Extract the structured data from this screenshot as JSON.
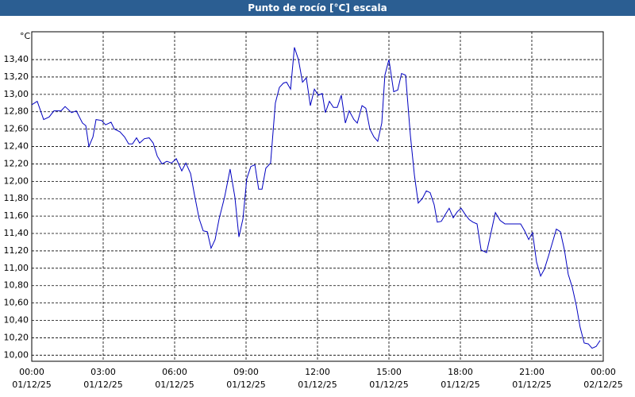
{
  "chart_data": {
    "type": "line",
    "title": "Punto de rocío [°C] escala",
    "y_label": "°C",
    "series": [
      {
        "name": "Punto de rocío",
        "color": "#0000c0",
        "x": [
          0,
          0.23,
          0.5,
          0.73,
          0.93,
          1.23,
          1.4,
          1.67,
          1.87,
          2.13,
          2.27,
          2.4,
          2.57,
          2.7,
          2.93,
          3.1,
          3.33,
          3.47,
          3.7,
          3.9,
          4.07,
          4.23,
          4.4,
          4.53,
          4.73,
          4.93,
          5.1,
          5.27,
          5.47,
          5.67,
          5.87,
          6.07,
          6.3,
          6.47,
          6.67,
          6.83,
          7.03,
          7.2,
          7.37,
          7.53,
          7.7,
          7.87,
          8.1,
          8.33,
          8.53,
          8.7,
          8.87,
          9.03,
          9.2,
          9.37,
          9.53,
          9.67,
          9.83,
          10.03,
          10.23,
          10.4,
          10.57,
          10.7,
          10.87,
          11.03,
          11.2,
          11.37,
          11.53,
          11.7,
          11.87,
          12.03,
          12.2,
          12.33,
          12.5,
          12.67,
          12.83,
          13,
          13.17,
          13.33,
          13.53,
          13.67,
          13.87,
          14.03,
          14.2,
          14.37,
          14.53,
          14.7,
          14.83,
          15,
          15.2,
          15.37,
          15.53,
          15.7,
          15.9,
          16.07,
          16.23,
          16.4,
          16.57,
          16.73,
          16.9,
          17.03,
          17.2,
          17.37,
          17.53,
          17.7,
          17.87,
          18.03,
          18.2,
          18.37,
          18.53,
          18.7,
          18.87,
          19.1,
          19.27,
          19.47,
          19.67,
          19.87,
          20.53,
          20.7,
          20.87,
          21.03,
          21.2,
          21.37,
          21.53,
          21.7,
          21.87,
          22.03,
          22.2,
          22.37,
          22.53,
          22.7,
          22.87,
          23.03,
          23.2,
          23.37,
          23.53,
          23.7,
          23.87
        ],
        "values": [
          12.88,
          12.92,
          12.71,
          12.74,
          12.81,
          12.81,
          12.86,
          12.79,
          12.81,
          12.67,
          12.64,
          12.4,
          12.51,
          12.71,
          12.7,
          12.65,
          12.68,
          12.6,
          12.57,
          12.51,
          12.43,
          12.43,
          12.5,
          12.44,
          12.49,
          12.5,
          12.44,
          12.29,
          12.2,
          12.23,
          12.21,
          12.26,
          12.12,
          12.21,
          12.09,
          11.85,
          11.57,
          11.43,
          11.42,
          11.23,
          11.33,
          11.57,
          11.82,
          12.14,
          11.82,
          11.36,
          11.57,
          12.03,
          12.17,
          12.19,
          11.91,
          11.91,
          12.15,
          12.21,
          12.9,
          13.08,
          13.13,
          13.14,
          13.06,
          13.54,
          13.4,
          13.14,
          13.19,
          12.87,
          13.06,
          12.99,
          13.01,
          12.79,
          12.92,
          12.85,
          12.85,
          12.99,
          12.67,
          12.81,
          12.71,
          12.67,
          12.87,
          12.84,
          12.6,
          12.51,
          12.46,
          12.67,
          13.22,
          13.4,
          13.03,
          13.05,
          13.24,
          13.22,
          12.53,
          12.07,
          11.75,
          11.8,
          11.89,
          11.87,
          11.73,
          11.53,
          11.54,
          11.62,
          11.69,
          11.58,
          11.65,
          11.69,
          11.62,
          11.56,
          11.53,
          11.51,
          11.21,
          11.18,
          11.39,
          11.64,
          11.55,
          11.51,
          11.51,
          11.43,
          11.33,
          11.41,
          11.07,
          10.91,
          10.99,
          11.14,
          11.3,
          11.45,
          11.42,
          11.21,
          10.93,
          10.78,
          10.57,
          10.32,
          10.14,
          10.13,
          10.08,
          10.1,
          10.17
        ]
      }
    ],
    "xlim": [
      0,
      24
    ],
    "xticks": [
      {
        "value": 0,
        "label": "00:00\n01/12/25"
      },
      {
        "value": 3,
        "label": "03:00\n01/12/25"
      },
      {
        "value": 6,
        "label": "06:00\n01/12/25"
      },
      {
        "value": 9,
        "label": "09:00\n01/12/25"
      },
      {
        "value": 12,
        "label": "12:00\n01/12/25"
      },
      {
        "value": 15,
        "label": "15:00\n01/12/25"
      },
      {
        "value": 18,
        "label": "18:00\n01/12/25"
      },
      {
        "value": 21,
        "label": "21:00\n01/12/25"
      },
      {
        "value": 24,
        "label": "00:00\n02/12/25"
      }
    ],
    "ylim": [
      9.93,
      13.72
    ],
    "yticks": [
      {
        "value": 10,
        "label": "10,00"
      },
      {
        "value": 10.2,
        "label": "10,20"
      },
      {
        "value": 10.4,
        "label": "10,40"
      },
      {
        "value": 10.6,
        "label": "10,60"
      },
      {
        "value": 10.8,
        "label": "10,80"
      },
      {
        "value": 11,
        "label": "11,00"
      },
      {
        "value": 11.2,
        "label": "11,20"
      },
      {
        "value": 11.4,
        "label": "11,40"
      },
      {
        "value": 11.6,
        "label": "11,60"
      },
      {
        "value": 11.8,
        "label": "11,80"
      },
      {
        "value": 12,
        "label": "12,00"
      },
      {
        "value": 12.2,
        "label": "12,20"
      },
      {
        "value": 12.4,
        "label": "12,40"
      },
      {
        "value": 12.6,
        "label": "12,60"
      },
      {
        "value": 12.8,
        "label": "12,80"
      },
      {
        "value": 13,
        "label": "13,00"
      },
      {
        "value": 13.2,
        "label": "13,20"
      },
      {
        "value": 13.4,
        "label": "13,40"
      }
    ],
    "grid": true
  }
}
